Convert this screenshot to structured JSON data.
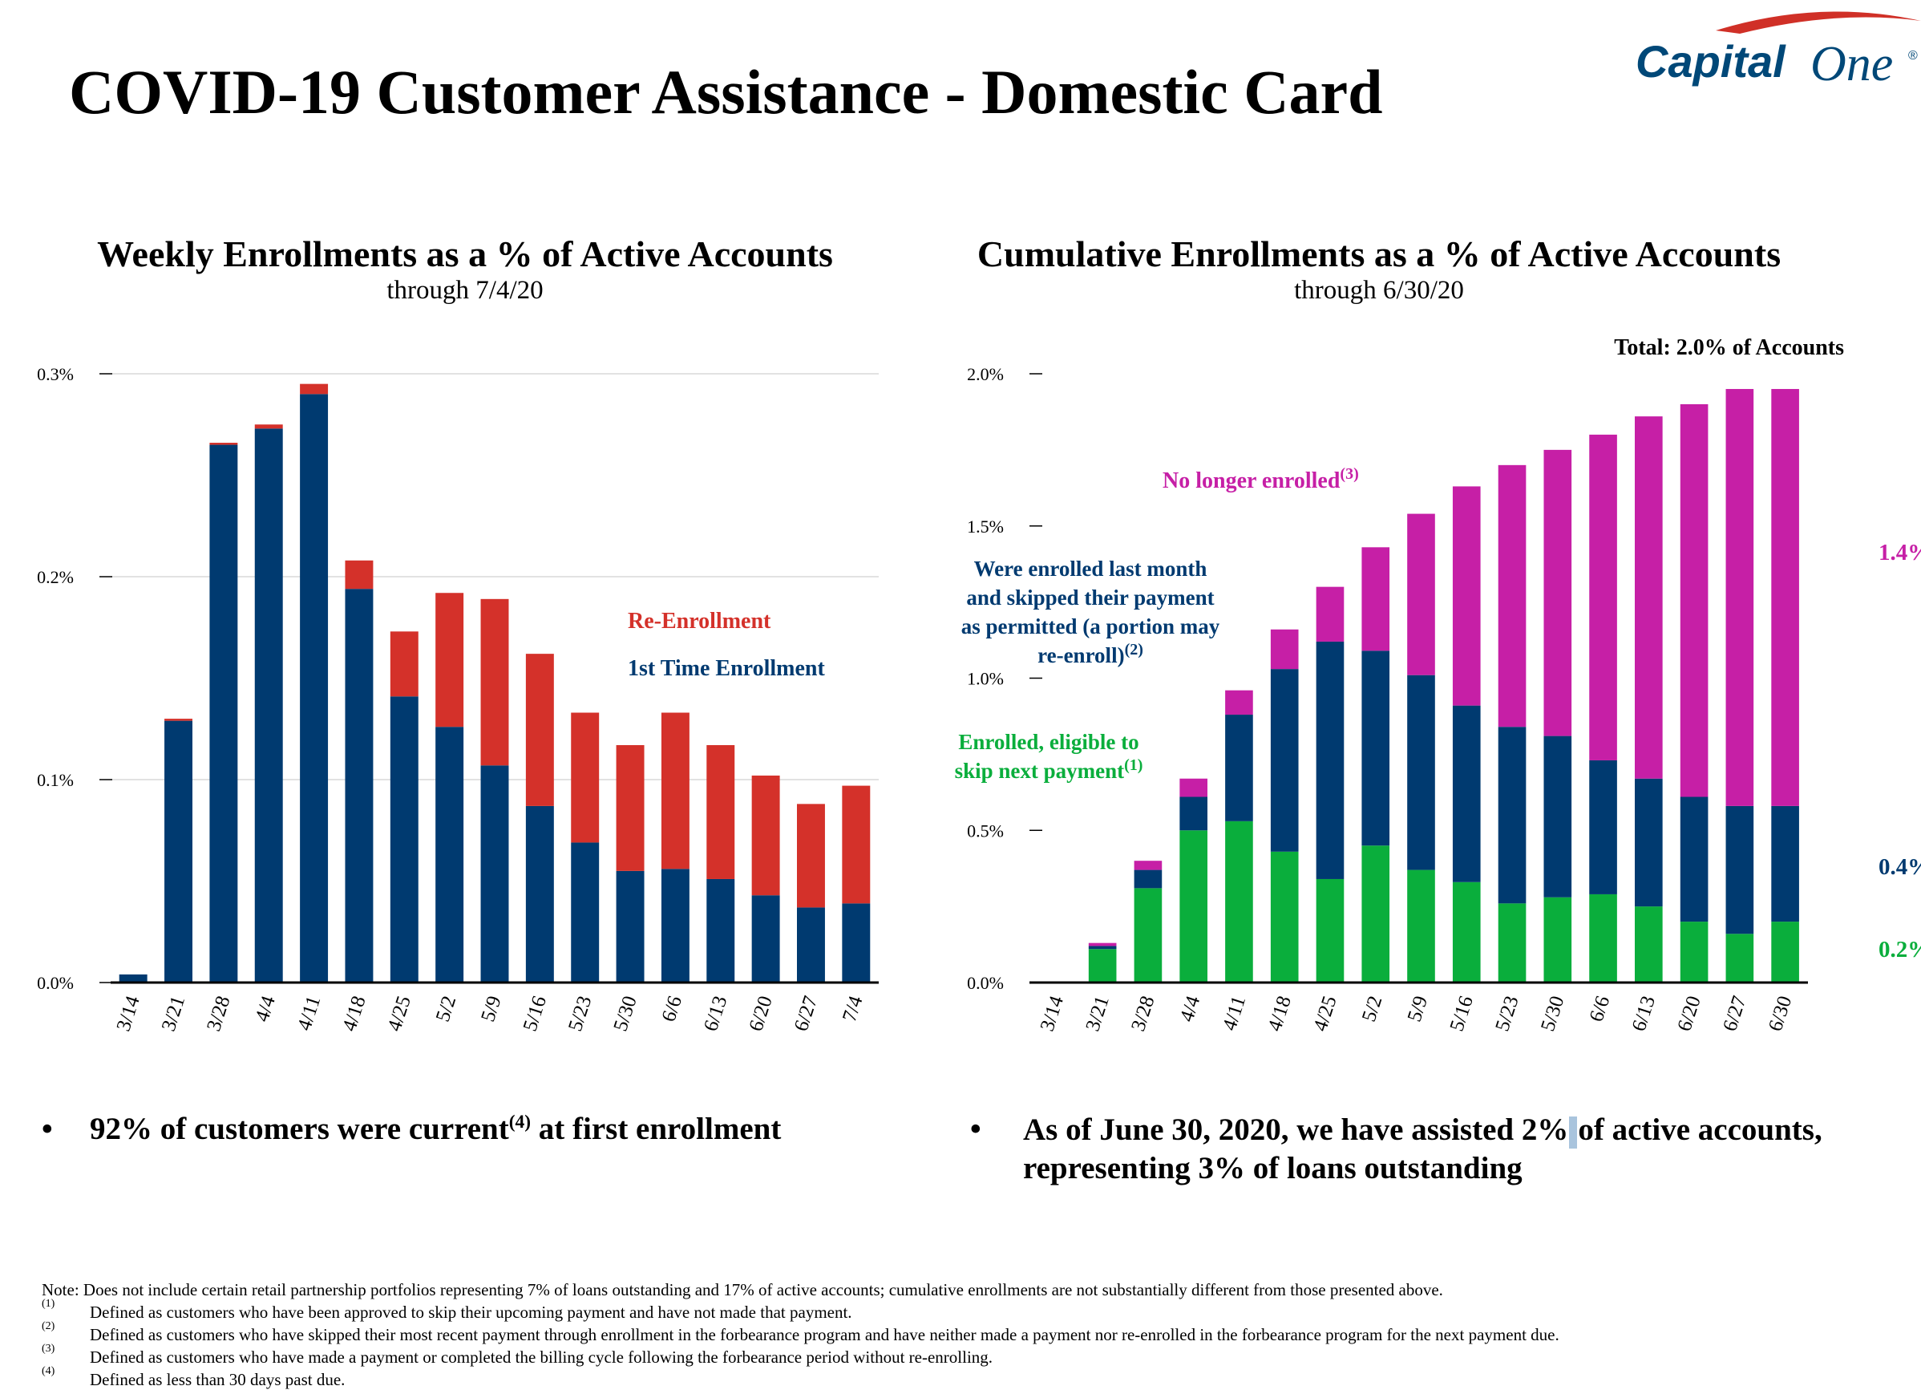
{
  "page_title": "COVID-19 Customer Assistance - Domestic Card",
  "logo": {
    "text_main": "Capital",
    "text_script": "One",
    "registered": "®",
    "swoosh_color": "#d03027",
    "text_color": "#004878"
  },
  "colors": {
    "navy": "#003a70",
    "red": "#d4312a",
    "green": "#0aae3c",
    "magenta": "#c61fa6"
  },
  "chart_data": [
    {
      "type": "bar",
      "stacked": true,
      "title": "Weekly Enrollments as a % of Active Accounts",
      "subtitle": "through 7/4/20",
      "categories": [
        "3/14",
        "3/21",
        "3/28",
        "4/4",
        "4/11",
        "4/18",
        "4/25",
        "5/2",
        "5/9",
        "5/16",
        "5/23",
        "5/30",
        "6/6",
        "6/13",
        "6/20",
        "6/27",
        "7/4"
      ],
      "series": [
        {
          "name": "1st Time Enrollment",
          "color": "#003a70",
          "values": [
            0.004,
            0.129,
            0.265,
            0.273,
            0.29,
            0.194,
            0.141,
            0.126,
            0.107,
            0.087,
            0.069,
            0.055,
            0.056,
            0.051,
            0.043,
            0.037,
            0.039
          ]
        },
        {
          "name": "Re-Enrollment",
          "color": "#d4312a",
          "values": [
            0.0,
            0.001,
            0.001,
            0.002,
            0.005,
            0.014,
            0.032,
            0.066,
            0.082,
            0.075,
            0.064,
            0.062,
            0.077,
            0.066,
            0.059,
            0.051,
            0.058
          ]
        }
      ],
      "ylim": [
        0,
        0.3
      ],
      "yticks": [
        0,
        0.1,
        0.2,
        0.3
      ],
      "ytick_labels": [
        "0.0%",
        "0.1%",
        "0.2%",
        "0.3%"
      ],
      "grid": true
    },
    {
      "type": "bar",
      "stacked": true,
      "title": "Cumulative Enrollments as a % of Active Accounts",
      "subtitle": "through 6/30/20",
      "total_label": "Total: 2.0% of Accounts",
      "categories": [
        "3/14",
        "3/21",
        "3/28",
        "4/4",
        "4/11",
        "4/18",
        "4/25",
        "5/2",
        "5/9",
        "5/16",
        "5/23",
        "5/30",
        "6/6",
        "6/13",
        "6/20",
        "6/27",
        "6/30"
      ],
      "series": [
        {
          "name": "Enrolled, eligible to skip next payment",
          "note": "(1)",
          "color": "#0aae3c",
          "values": [
            0.0,
            0.11,
            0.31,
            0.5,
            0.53,
            0.43,
            0.34,
            0.45,
            0.37,
            0.33,
            0.26,
            0.28,
            0.29,
            0.25,
            0.2,
            0.16,
            0.2
          ]
        },
        {
          "name": "Were enrolled last month and skipped their payment as permitted (a portion may re-enroll)",
          "note": "(2)",
          "color": "#003a70",
          "values": [
            0.0,
            0.01,
            0.06,
            0.11,
            0.35,
            0.6,
            0.78,
            0.64,
            0.64,
            0.58,
            0.58,
            0.53,
            0.44,
            0.42,
            0.41,
            0.42,
            0.38
          ]
        },
        {
          "name": "No longer enrolled",
          "note": "(3)",
          "color": "#c61fa6",
          "values": [
            0.0,
            0.01,
            0.03,
            0.06,
            0.08,
            0.13,
            0.18,
            0.34,
            0.53,
            0.72,
            0.86,
            0.94,
            1.07,
            1.19,
            1.29,
            1.37,
            1.37
          ]
        }
      ],
      "end_labels": [
        {
          "text": "1.4%",
          "color": "#c61fa6"
        },
        {
          "text": "0.4%",
          "color": "#003a70"
        },
        {
          "text": "0.2%",
          "color": "#0aae3c"
        }
      ],
      "ylim": [
        0,
        2.0
      ],
      "yticks": [
        0,
        0.5,
        1.0,
        1.5,
        2.0
      ],
      "ytick_labels": [
        "0.0%",
        "0.5%",
        "1.0%",
        "1.5%",
        "2.0%"
      ],
      "grid": false
    }
  ],
  "bullets": {
    "left": {
      "before": "92% of customers were current",
      "sup": "(4)",
      "after": " at first enrollment"
    },
    "right": {
      "line1_before": "As of June 30, 2020, we have assisted 2%",
      "line1_after": "of active accounts,",
      "line2": "representing 3% of loans outstanding"
    },
    "dot": "•"
  },
  "footnotes": {
    "note": "Note: Does not include certain retail partnership portfolios representing 7% of loans outstanding and 17% of active accounts; cumulative enrollments are not substantially different from those presented above.",
    "items": [
      {
        "mark": "(1)",
        "text": "Defined as customers who have been approved to skip their upcoming payment and have not made that payment."
      },
      {
        "mark": "(2)",
        "text": "Defined as customers who have skipped their most recent payment through enrollment in the forbearance program and have neither made a payment nor re-enrolled in the forbearance program for the next payment due."
      },
      {
        "mark": "(3)",
        "text": "Defined as customers who have made a payment or completed the billing cycle following the forbearance period without re-enrolling."
      },
      {
        "mark": "(4)",
        "text": "Defined as less than 30 days past due."
      }
    ]
  }
}
